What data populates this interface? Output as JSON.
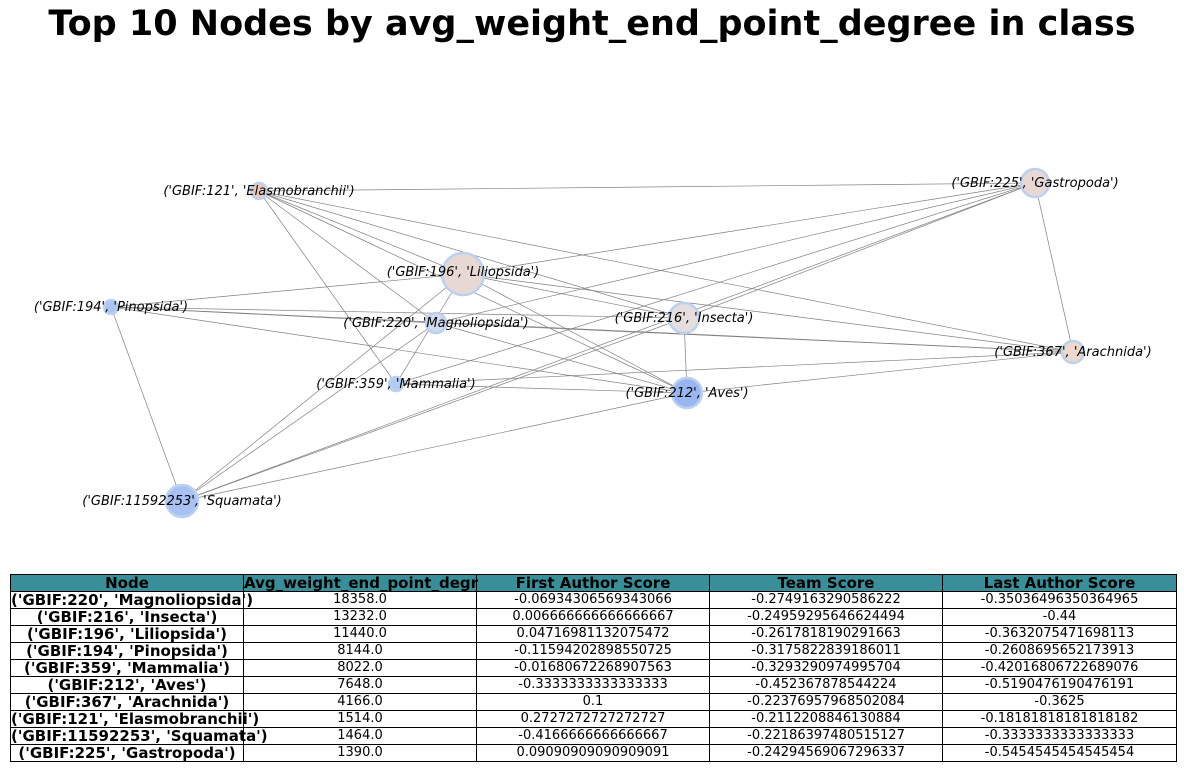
{
  "title": "Top 10 Nodes by avg_weight_end_point_degree in class",
  "graph": {
    "nodes": [
      {
        "id": "n196",
        "label": "('GBIF:196', 'Liliopsida')",
        "color": "#e8d8d4",
        "stroke": "#bcd0f0"
      },
      {
        "id": "n216",
        "label": "('GBIF:216', 'Insecta')",
        "color": "#e6dede",
        "stroke": "#bcd0f0"
      },
      {
        "id": "n225",
        "label": "('GBIF:225', 'Gastropoda')",
        "color": "#e8d8d4",
        "stroke": "#bcd0f0"
      },
      {
        "id": "n121",
        "label": "('GBIF:121', 'Elasmobranchii')",
        "color": "#ecc6b8",
        "stroke": "#bcd0f0"
      },
      {
        "id": "n194",
        "label": "('GBIF:194', 'Pinopsida')",
        "color": "#aec5f2",
        "stroke": "#bcd0f0"
      },
      {
        "id": "n220",
        "label": "('GBIF:220', 'Magnoliopsida')",
        "color": "#d2dcee",
        "stroke": "#bcd0f0"
      },
      {
        "id": "n367",
        "label": "('GBIF:367', 'Arachnida')",
        "color": "#ecd8cc",
        "stroke": "#bcd0f0"
      },
      {
        "id": "n359",
        "label": "('GBIF:359', 'Mammalia')",
        "color": "#b6cbf2",
        "stroke": "#bcd0f0"
      },
      {
        "id": "n212",
        "label": "('GBIF:212', 'Aves')",
        "color": "#9ab6f0",
        "stroke": "#bcd0f0"
      },
      {
        "id": "n11592253",
        "label": "('GBIF:11592253', 'Squamata')",
        "color": "#a8c0f2",
        "stroke": "#bcd0f0"
      }
    ],
    "edges": [
      [
        "n121",
        "n225"
      ],
      [
        "n121",
        "n196"
      ],
      [
        "n121",
        "n220"
      ],
      [
        "n121",
        "n216"
      ],
      [
        "n121",
        "n359"
      ],
      [
        "n121",
        "n212"
      ],
      [
        "n121",
        "n367"
      ],
      [
        "n196",
        "n194"
      ],
      [
        "n196",
        "n225"
      ],
      [
        "n196",
        "n216"
      ],
      [
        "n196",
        "n212"
      ],
      [
        "n196",
        "n367"
      ],
      [
        "n196",
        "n359"
      ],
      [
        "n196",
        "n11592253"
      ],
      [
        "n194",
        "n216"
      ],
      [
        "n194",
        "n220"
      ],
      [
        "n194",
        "n367"
      ],
      [
        "n194",
        "n212"
      ],
      [
        "n194",
        "n11592253"
      ],
      [
        "n225",
        "n220"
      ],
      [
        "n225",
        "n216"
      ],
      [
        "n225",
        "n359"
      ],
      [
        "n225",
        "n367"
      ],
      [
        "n225",
        "n11592253"
      ],
      [
        "n220",
        "n367"
      ],
      [
        "n220",
        "n11592253"
      ],
      [
        "n220",
        "n212"
      ],
      [
        "n216",
        "n212"
      ],
      [
        "n216",
        "n11592253"
      ],
      [
        "n359",
        "n212"
      ],
      [
        "n359",
        "n367"
      ],
      [
        "n212",
        "n367"
      ],
      [
        "n11592253",
        "n212"
      ]
    ]
  },
  "table": {
    "headers": [
      "Node",
      "Avg_weight_end_point_degr",
      "First Author Score",
      "Team Score",
      "Last Author Score"
    ],
    "rows": [
      [
        "('GBIF:220', 'Magnoliopsida')",
        "18358.0",
        "-0.06934306569343066",
        "-0.2749163290586222",
        "-0.35036496350364965"
      ],
      [
        "('GBIF:216', 'Insecta')",
        "13232.0",
        "0.006666666666666667",
        "-0.24959295646624494",
        "-0.44"
      ],
      [
        "('GBIF:196', 'Liliopsida')",
        "11440.0",
        "0.04716981132075472",
        "-0.2617818190291663",
        "-0.3632075471698113"
      ],
      [
        "('GBIF:194', 'Pinopsida')",
        "8144.0",
        "-0.11594202898550725",
        "-0.3175822839186011",
        "-0.2608695652173913"
      ],
      [
        "('GBIF:359', 'Mammalia')",
        "8022.0",
        "-0.01680672268907563",
        "-0.3293290974995704",
        "-0.42016806722689076"
      ],
      [
        "('GBIF:212', 'Aves')",
        "7648.0",
        "-0.3333333333333333",
        "-0.452367878544224",
        "-0.5190476190476191"
      ],
      [
        "('GBIF:367', 'Arachnida')",
        "4166.0",
        "0.1",
        "-0.22376957968502084",
        "-0.3625"
      ],
      [
        "('GBIF:121', 'Elasmobranchii')",
        "1514.0",
        "0.2727272727272727",
        "-0.2112208846130884",
        "-0.18181818181818182"
      ],
      [
        "('GBIF:11592253', 'Squamata')",
        "1464.0",
        "-0.4166666666666667",
        "-0.22186397480515127",
        "-0.3333333333333333"
      ],
      [
        "('GBIF:225', 'Gastropoda')",
        "1390.0",
        "0.09090909090909091",
        "-0.24294569067296337",
        "-0.5454545454545454"
      ]
    ]
  }
}
